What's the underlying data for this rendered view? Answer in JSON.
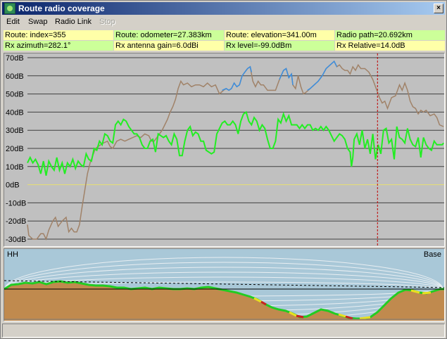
{
  "window": {
    "title": "Route radio coverage",
    "close_label": "×"
  },
  "menu": {
    "items": [
      "Edit",
      "Swap",
      "Radio Link",
      "Stop"
    ]
  },
  "info": {
    "row1": [
      "Route: index=355",
      "Route: odometer=27.383km",
      "Route: elevation=341.00m",
      "Radio path=20.692km"
    ],
    "row2": [
      "Rx azimuth=282.1°",
      "Rx antenna gain=6.0dBi",
      "Rx level=-99.0dBm",
      "Rx Relative=14.0dB"
    ]
  },
  "chart_data": {
    "type": "line",
    "y_ticks": [
      "70dB",
      "60dB",
      "50dB",
      "40dB",
      "30dB",
      "20dB",
      "10dB",
      "0dB",
      "-10dB",
      "-20dB",
      "-30dB"
    ],
    "ylim": [
      -33,
      70
    ],
    "grid": true,
    "series_elevation_db": [
      [
        0,
        -22
      ],
      [
        2,
        -28
      ],
      [
        8,
        -30
      ],
      [
        14,
        -30
      ],
      [
        20,
        -27
      ],
      [
        24,
        -27
      ],
      [
        28,
        -30
      ],
      [
        32,
        -25
      ],
      [
        38,
        -20
      ],
      [
        42,
        -18
      ],
      [
        46,
        -23
      ],
      [
        52,
        -20
      ],
      [
        58,
        -18
      ],
      [
        62,
        -26
      ],
      [
        66,
        -24
      ],
      [
        70,
        -26
      ],
      [
        74,
        -26
      ],
      [
        78,
        -22
      ],
      [
        82,
        -12
      ],
      [
        86,
        -3
      ],
      [
        90,
        6
      ],
      [
        94,
        12
      ],
      [
        98,
        16
      ],
      [
        102,
        20
      ],
      [
        106,
        21
      ],
      [
        110,
        22
      ],
      [
        114,
        23
      ],
      [
        120,
        24
      ],
      [
        124,
        21
      ],
      [
        128,
        20
      ],
      [
        134,
        24
      ],
      [
        140,
        25
      ],
      [
        146,
        24
      ],
      [
        152,
        25
      ],
      [
        158,
        26
      ],
      [
        164,
        27
      ],
      [
        170,
        26
      ],
      [
        176,
        28
      ],
      [
        182,
        27
      ],
      [
        186,
        24
      ],
      [
        190,
        24
      ],
      [
        196,
        27
      ],
      [
        202,
        30
      ],
      [
        206,
        33
      ],
      [
        210,
        36
      ],
      [
        214,
        40
      ],
      [
        218,
        43
      ],
      [
        222,
        47
      ],
      [
        226,
        53
      ],
      [
        230,
        57
      ],
      [
        234,
        55
      ],
      [
        240,
        56
      ],
      [
        246,
        54
      ],
      [
        252,
        55
      ],
      [
        258,
        55
      ],
      [
        264,
        54
      ],
      [
        270,
        56
      ],
      [
        276,
        54
      ],
      [
        282,
        55
      ],
      [
        288,
        50
      ],
      [
        294,
        52
      ],
      [
        298,
        53
      ],
      [
        302,
        52
      ],
      [
        306,
        53
      ],
      [
        310,
        56
      ],
      [
        314,
        54
      ],
      [
        318,
        55
      ],
      [
        322,
        60
      ],
      [
        326,
        62
      ],
      [
        330,
        64
      ],
      [
        334,
        65
      ],
      [
        338,
        57
      ],
      [
        342,
        54
      ],
      [
        346,
        57
      ],
      [
        350,
        55
      ],
      [
        354,
        55
      ],
      [
        360,
        52
      ],
      [
        366,
        52
      ],
      [
        372,
        52
      ],
      [
        378,
        58
      ],
      [
        384,
        63
      ],
      [
        388,
        64
      ],
      [
        392,
        59
      ],
      [
        396,
        61
      ],
      [
        398,
        55
      ],
      [
        402,
        53
      ],
      [
        406,
        60
      ],
      [
        410,
        54
      ],
      [
        414,
        50
      ],
      [
        418,
        51
      ],
      [
        424,
        53
      ],
      [
        430,
        55
      ],
      [
        436,
        57
      ],
      [
        442,
        60
      ],
      [
        448,
        64
      ],
      [
        454,
        66
      ],
      [
        460,
        68
      ],
      [
        464,
        65
      ],
      [
        468,
        66
      ],
      [
        472,
        64
      ],
      [
        476,
        63
      ],
      [
        480,
        63
      ],
      [
        484,
        61
      ],
      [
        488,
        65
      ],
      [
        492,
        63
      ],
      [
        496,
        66
      ],
      [
        500,
        64
      ],
      [
        506,
        64
      ],
      [
        512,
        62
      ],
      [
        518,
        58
      ],
      [
        524,
        52
      ],
      [
        528,
        48
      ],
      [
        532,
        45
      ],
      [
        536,
        46
      ],
      [
        540,
        42
      ],
      [
        546,
        48
      ],
      [
        552,
        49
      ],
      [
        558,
        55
      ],
      [
        562,
        52
      ],
      [
        566,
        56
      ],
      [
        570,
        52
      ],
      [
        574,
        46
      ],
      [
        578,
        43
      ],
      [
        582,
        42
      ],
      [
        586,
        39
      ],
      [
        590,
        41
      ],
      [
        594,
        40
      ],
      [
        598,
        41
      ],
      [
        604,
        38
      ],
      [
        610,
        39
      ],
      [
        614,
        37
      ],
      [
        618,
        33
      ],
      [
        624,
        32
      ]
    ],
    "series_elevation_blue_db": [
      [
        292,
        52
      ],
      [
        298,
        53
      ],
      [
        302,
        52
      ],
      [
        306,
        53
      ],
      [
        310,
        56
      ],
      [
        314,
        54
      ],
      [
        318,
        55
      ],
      [
        322,
        60
      ],
      [
        326,
        62
      ],
      [
        330,
        64
      ],
      [
        334,
        65
      ],
      [
        336,
        62
      ]
    ],
    "series_elevation_blue2_db": [
      [
        378,
        58
      ],
      [
        384,
        63
      ],
      [
        388,
        64
      ],
      [
        392,
        59
      ],
      [
        396,
        61
      ],
      [
        398,
        55
      ]
    ],
    "series_elevation_blue3_db": [
      [
        420,
        52
      ],
      [
        424,
        53
      ],
      [
        430,
        55
      ],
      [
        436,
        57
      ],
      [
        442,
        60
      ],
      [
        448,
        64
      ],
      [
        454,
        66
      ],
      [
        460,
        68
      ],
      [
        464,
        65
      ]
    ],
    "series_signal_db": [
      [
        0,
        12
      ],
      [
        4,
        15
      ],
      [
        8,
        12
      ],
      [
        12,
        14
      ],
      [
        16,
        11
      ],
      [
        20,
        6
      ],
      [
        24,
        13
      ],
      [
        28,
        5
      ],
      [
        32,
        13
      ],
      [
        36,
        10
      ],
      [
        40,
        8
      ],
      [
        44,
        15
      ],
      [
        48,
        8
      ],
      [
        52,
        12
      ],
      [
        56,
        6
      ],
      [
        60,
        12
      ],
      [
        64,
        10
      ],
      [
        68,
        14
      ],
      [
        72,
        9
      ],
      [
        76,
        13
      ],
      [
        80,
        11
      ],
      [
        84,
        10
      ],
      [
        88,
        17
      ],
      [
        92,
        14
      ],
      [
        96,
        13
      ],
      [
        100,
        20
      ],
      [
        104,
        19
      ],
      [
        108,
        24
      ],
      [
        112,
        22
      ],
      [
        116,
        28
      ],
      [
        120,
        27
      ],
      [
        124,
        24
      ],
      [
        128,
        23
      ],
      [
        132,
        33
      ],
      [
        136,
        35
      ],
      [
        140,
        33
      ],
      [
        144,
        36
      ],
      [
        148,
        35
      ],
      [
        152,
        32
      ],
      [
        156,
        30
      ],
      [
        160,
        28
      ],
      [
        164,
        28
      ],
      [
        168,
        26
      ],
      [
        172,
        22
      ],
      [
        176,
        20
      ],
      [
        180,
        20
      ],
      [
        184,
        24
      ],
      [
        188,
        25
      ],
      [
        192,
        18
      ],
      [
        196,
        28
      ],
      [
        200,
        27
      ],
      [
        204,
        26
      ],
      [
        208,
        27
      ],
      [
        212,
        24
      ],
      [
        216,
        22
      ],
      [
        220,
        28
      ],
      [
        224,
        25
      ],
      [
        228,
        16
      ],
      [
        232,
        16
      ],
      [
        236,
        24
      ],
      [
        240,
        30
      ],
      [
        244,
        32
      ],
      [
        248,
        27
      ],
      [
        252,
        29
      ],
      [
        256,
        28
      ],
      [
        260,
        24
      ],
      [
        264,
        24
      ],
      [
        268,
        19
      ],
      [
        272,
        18
      ],
      [
        276,
        17
      ],
      [
        280,
        18
      ],
      [
        284,
        28
      ],
      [
        288,
        31
      ],
      [
        292,
        34
      ],
      [
        296,
        35
      ],
      [
        300,
        33
      ],
      [
        304,
        33
      ],
      [
        308,
        35
      ],
      [
        312,
        33
      ],
      [
        316,
        28
      ],
      [
        320,
        35
      ],
      [
        324,
        39
      ],
      [
        328,
        40
      ],
      [
        332,
        35
      ],
      [
        336,
        33
      ],
      [
        340,
        37
      ],
      [
        344,
        35
      ],
      [
        348,
        30
      ],
      [
        352,
        33
      ],
      [
        356,
        31
      ],
      [
        360,
        25
      ],
      [
        364,
        20
      ],
      [
        368,
        20
      ],
      [
        372,
        24
      ],
      [
        376,
        36
      ],
      [
        380,
        34
      ],
      [
        384,
        39
      ],
      [
        388,
        35
      ],
      [
        392,
        38
      ],
      [
        396,
        33
      ],
      [
        400,
        33
      ],
      [
        404,
        33
      ],
      [
        408,
        31
      ],
      [
        412,
        33
      ],
      [
        416,
        31
      ],
      [
        420,
        33
      ],
      [
        424,
        33
      ],
      [
        428,
        30
      ],
      [
        432,
        31
      ],
      [
        436,
        30
      ],
      [
        440,
        32
      ],
      [
        444,
        30
      ],
      [
        448,
        32
      ],
      [
        452,
        30
      ],
      [
        456,
        27
      ],
      [
        460,
        24
      ],
      [
        464,
        26
      ],
      [
        468,
        28
      ],
      [
        472,
        27
      ],
      [
        476,
        25
      ],
      [
        480,
        20
      ],
      [
        484,
        18
      ],
      [
        486,
        10
      ],
      [
        488,
        15
      ],
      [
        490,
        25
      ],
      [
        494,
        28
      ],
      [
        498,
        22
      ],
      [
        502,
        30
      ],
      [
        506,
        20
      ],
      [
        510,
        25
      ],
      [
        514,
        17
      ],
      [
        518,
        28
      ],
      [
        522,
        14
      ],
      [
        526,
        22
      ],
      [
        530,
        17
      ],
      [
        534,
        30
      ],
      [
        538,
        31
      ],
      [
        542,
        23
      ],
      [
        546,
        25
      ],
      [
        550,
        14
      ],
      [
        554,
        32
      ],
      [
        558,
        26
      ],
      [
        562,
        25
      ],
      [
        566,
        23
      ],
      [
        570,
        31
      ],
      [
        574,
        25
      ],
      [
        578,
        22
      ],
      [
        582,
        21
      ],
      [
        586,
        26
      ],
      [
        590,
        15
      ],
      [
        594,
        26
      ],
      [
        598,
        22
      ],
      [
        602,
        20
      ],
      [
        606,
        19
      ],
      [
        610,
        24
      ],
      [
        614,
        22
      ],
      [
        618,
        22
      ],
      [
        622,
        22
      ],
      [
        624,
        23
      ]
    ],
    "zero_line_db": 0,
    "cursor_x": 525
  },
  "profile": {
    "left_label": "HH",
    "right_label": "Base"
  }
}
